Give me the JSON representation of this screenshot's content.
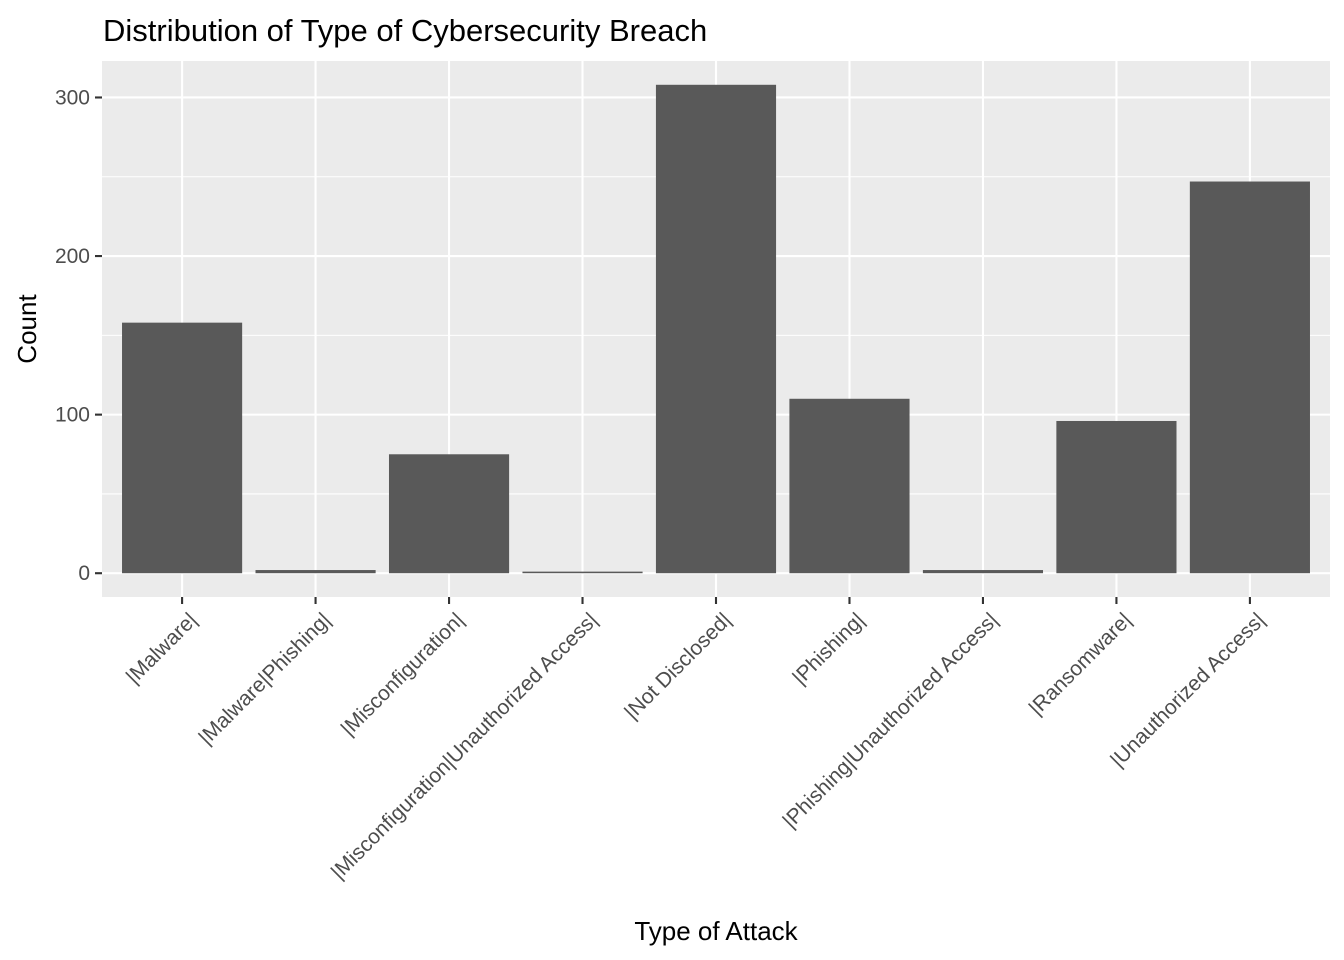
{
  "chart_data": {
    "type": "bar",
    "title": "Distribution of Type of Cybersecurity Breach",
    "xlabel": "Type of Attack",
    "ylabel": "Count",
    "categories": [
      "|Malware|",
      "|Malware|Phishing|",
      "|Misconfiguration|",
      "|Misconfiguration|Unauthorized Access|",
      "|Not Disclosed|",
      "|Phishing|",
      "|Phishing|Unauthorized Access|",
      "|Ransomware|",
      "|Unauthorized Access|"
    ],
    "values": [
      158,
      2,
      75,
      1,
      308,
      110,
      2,
      96,
      247
    ],
    "ylim": [
      -15,
      323
    ],
    "yticks": [
      0,
      100,
      200,
      300
    ],
    "ytick_labels": [
      "0",
      "100",
      "200",
      "300"
    ],
    "grid": true,
    "legend": "none",
    "colors": {
      "bar": "#595959",
      "panel": "#EBEBEB",
      "grid": "#FFFFFF"
    }
  }
}
